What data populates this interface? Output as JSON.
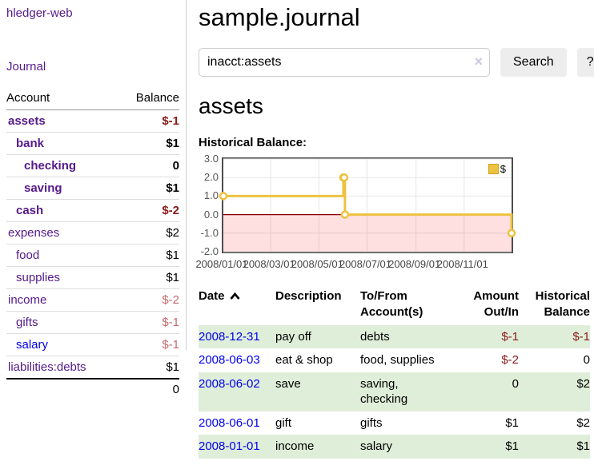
{
  "app": {
    "title": "hledger-web"
  },
  "colors": {
    "accent_purple": "#551a8b",
    "link_blue": "#0000ee",
    "negative_dark": "#8b1a1a",
    "negative_soft": "#c86a6e",
    "row_green": "#dfeed9",
    "chart_yellow": "#edc240",
    "zero_line": "#8b0000"
  },
  "sidebar": {
    "journal_link": "Journal",
    "accounts_table": {
      "headers": {
        "account": "Account",
        "balance": "Balance"
      },
      "rows": [
        {
          "name": "assets",
          "depth": 0,
          "bold": true,
          "balance": "$-1",
          "bclass": "neg"
        },
        {
          "name": "bank",
          "depth": 1,
          "bold": true,
          "balance": "$1",
          "bclass": ""
        },
        {
          "name": "checking",
          "depth": 2,
          "bold": true,
          "balance": "0",
          "bclass": ""
        },
        {
          "name": "saving",
          "depth": 2,
          "bold": true,
          "balance": "$1",
          "bclass": ""
        },
        {
          "name": "cash",
          "depth": 1,
          "bold": true,
          "balance": "$-2",
          "bclass": "neg"
        },
        {
          "name": "expenses",
          "depth": 0,
          "bold": false,
          "balance": "$2",
          "bclass": ""
        },
        {
          "name": "food",
          "depth": 1,
          "bold": false,
          "balance": "$1",
          "bclass": ""
        },
        {
          "name": "supplies",
          "depth": 1,
          "bold": false,
          "balance": "$1",
          "bclass": ""
        },
        {
          "name": "income",
          "depth": 0,
          "bold": false,
          "balance": "$-2",
          "bclass": "neg-soft"
        },
        {
          "name": "gifts",
          "depth": 1,
          "bold": false,
          "balance": "$-1",
          "bclass": "neg-soft"
        },
        {
          "name": "salary",
          "depth": 1,
          "bold": false,
          "balance": "$-1",
          "bclass": "neg-soft",
          "unvisited": true
        },
        {
          "name": "liabilities:debts",
          "depth": 0,
          "bold": false,
          "balance": "$1",
          "bclass": ""
        }
      ],
      "total": "0"
    }
  },
  "main": {
    "title": "sample.journal",
    "search": {
      "value": "inacct:assets",
      "clear_icon": "×",
      "button": "Search",
      "help_button": "?"
    },
    "account_heading": "assets",
    "chart_heading": "Historical Balance:"
  },
  "chart_data": {
    "type": "line",
    "title": "Historical Balance:",
    "x_range": [
      "2008-01-01",
      "2008-12-31"
    ],
    "ylim": [
      -2,
      3
    ],
    "y_ticks": [
      "3.0",
      "2.0",
      "1.0",
      "0.0",
      "-1.0",
      "-2.0"
    ],
    "x_ticks": [
      "2008/01/01",
      "2008/03/01",
      "2008/05/01",
      "2008/07/01",
      "2008/09/01",
      "2008/11/01"
    ],
    "grid": true,
    "legend_position": "top-right",
    "zero_line_color": "#8b0000",
    "negative_fill": "rgba(255,0,0,0.12)",
    "series": [
      {
        "name": "$",
        "color": "#edc240",
        "step": true,
        "points": [
          [
            "2008-01-01",
            1
          ],
          [
            "2008-06-01",
            2
          ],
          [
            "2008-06-02",
            2
          ],
          [
            "2008-06-03",
            0
          ],
          [
            "2008-12-31",
            -1
          ]
        ]
      }
    ]
  },
  "transactions": {
    "headers": [
      {
        "line1": "Date",
        "line2": "",
        "align": "left",
        "sort": "asc"
      },
      {
        "line1": "Description",
        "line2": "",
        "align": "left"
      },
      {
        "line1": "To/From",
        "line2": "Account(s)",
        "align": "left"
      },
      {
        "line1": "Amount",
        "line2": "Out/In",
        "align": "right"
      },
      {
        "line1": "Historical",
        "line2": "Balance",
        "align": "right"
      }
    ],
    "rows": [
      {
        "date": "2008-12-31",
        "description": "pay off",
        "accounts": "debts",
        "amount": "$-1",
        "amount_neg": true,
        "balance": "$-1",
        "balance_neg": true,
        "shaded": true
      },
      {
        "date": "2008-06-03",
        "description": "eat & shop",
        "accounts": "food, supplies",
        "amount": "$-2",
        "amount_neg": true,
        "balance": "0",
        "balance_neg": false,
        "shaded": false
      },
      {
        "date": "2008-06-02",
        "description": "save",
        "accounts": "saving, checking",
        "amount": "0",
        "amount_neg": false,
        "balance": "$2",
        "balance_neg": false,
        "shaded": true
      },
      {
        "date": "2008-06-01",
        "description": "gift",
        "accounts": "gifts",
        "amount": "$1",
        "amount_neg": false,
        "balance": "$2",
        "balance_neg": false,
        "shaded": false
      },
      {
        "date": "2008-01-01",
        "description": "income",
        "accounts": "salary",
        "amount": "$1",
        "amount_neg": false,
        "balance": "$1",
        "balance_neg": false,
        "shaded": true
      }
    ]
  }
}
